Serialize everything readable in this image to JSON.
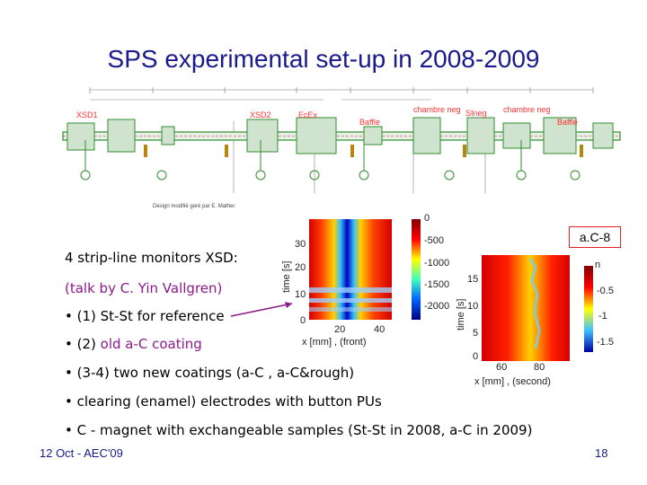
{
  "slide": {
    "title": "SPS experimental set-up in 2008-2009",
    "footer_date": "12 Oct - AEC'09",
    "page_number": "18"
  },
  "schematic": {
    "labels": [
      "XSD1",
      "XSD2",
      "EcEx",
      "Baffle",
      "chambre neg",
      "SIneg",
      "chambre neg",
      "Baffle"
    ],
    "credit": "Design modifié geré par E. Mather",
    "colors": {
      "beam_pipe": "#2f8f2f",
      "labels": "#ff3030"
    }
  },
  "sample_tag": "a.C-8",
  "bullets": {
    "line1": "4 strip-line monitors XSD:",
    "line2": "(talk by C. Yin Vallgren)",
    "line3": "• (1) St-St for reference",
    "line4_prefix": "• (2) ",
    "line4_highlight": "old a-C coating",
    "line5": "• (3-4) two new coatings (a-C , a-C&rough)",
    "line6": "• clearing (enamel) electrodes with button PUs",
    "line7": "• C - magnet with exchangeable samples (St-St in 2008,  a-C in 2009)"
  },
  "plot1": {
    "ylabel": "time [s]",
    "xlabel": "x [mm] , (front)",
    "yticks": [
      "30",
      "20",
      "10",
      "0"
    ],
    "xticks": [
      "20",
      "40"
    ],
    "colorbar_ticks": [
      "0",
      "-500",
      "-1000",
      "-1500",
      "-2000"
    ]
  },
  "plot2": {
    "ylabel": "time [s]",
    "xlabel": "x [mm] , (second)",
    "yticks": [
      "15",
      "10",
      "5",
      "0"
    ],
    "xticks": [
      "60",
      "80"
    ],
    "colorbar_ticks": [
      "-0.5",
      "-1",
      "-1.5"
    ],
    "colorbar_label_top": "n"
  },
  "colors": {
    "title": "#1a1a8c",
    "highlight": "#8a1a8a",
    "arrow": "#8a1a8a"
  }
}
